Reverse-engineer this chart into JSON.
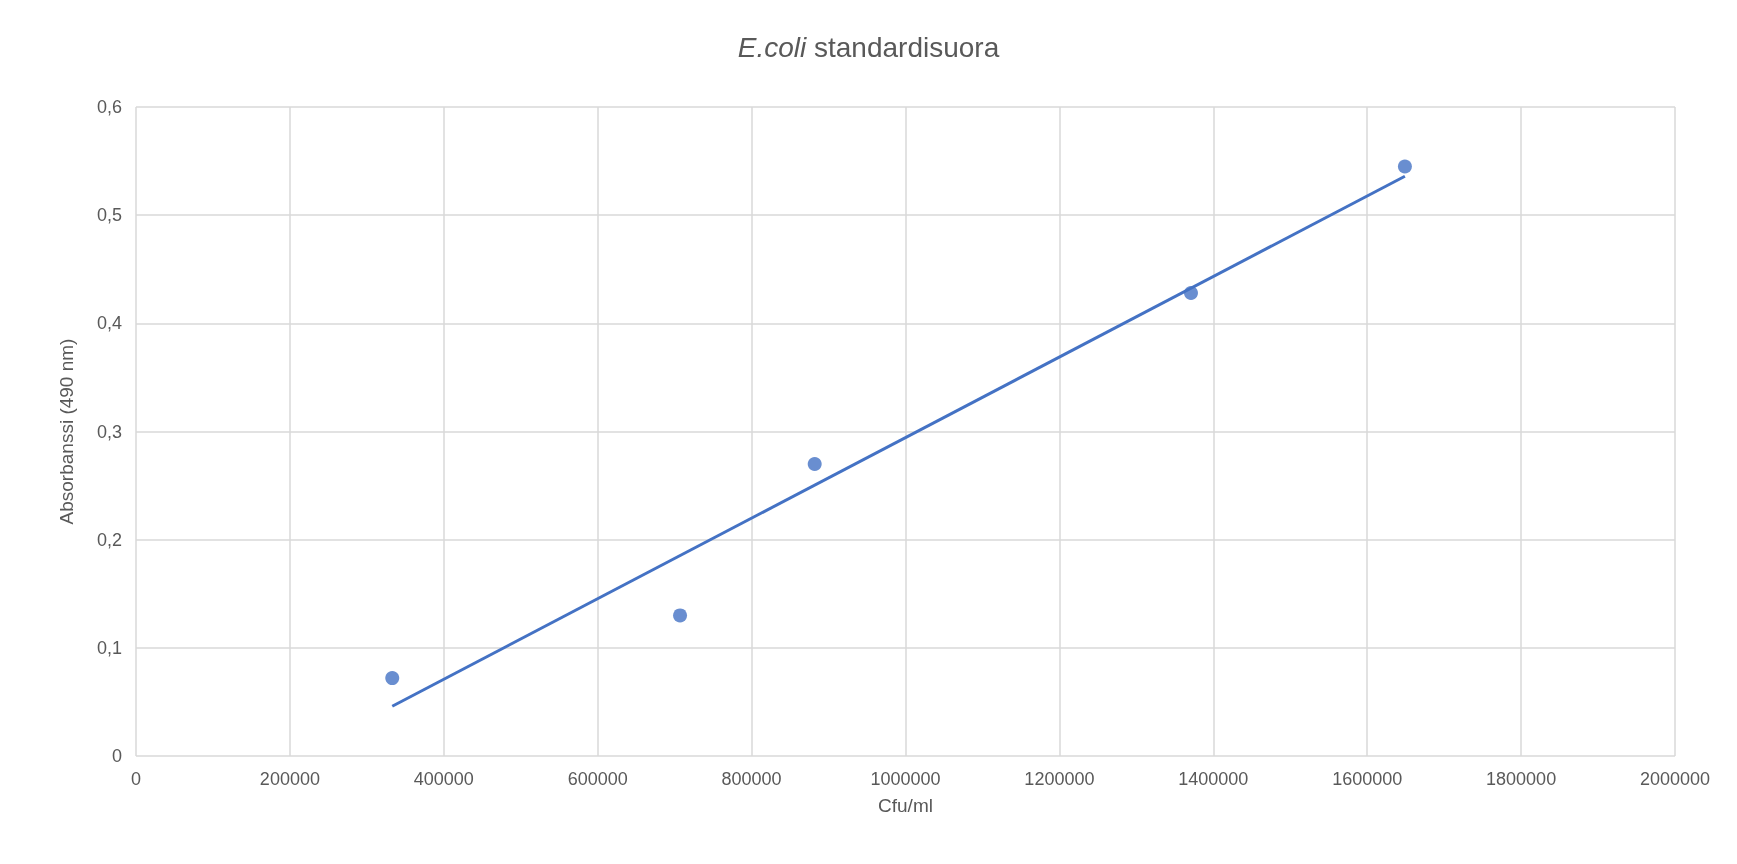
{
  "chart_data": {
    "type": "scatter",
    "title": "E.coli standardisuora",
    "xlabel": "Cfu/ml",
    "ylabel": "Absorbanssi (490 nm)",
    "series": [
      {
        "color": "#4472c4",
        "marker": "circle",
        "x": [
          333000,
          707000,
          882000,
          1371000,
          1649000
        ],
        "values": [
          0.072,
          0.13,
          0.27,
          0.428,
          0.545
        ]
      },
      {
        "type": "line",
        "color": "#4472c4",
        "line_style": "solid",
        "x": [
          333000,
          1649000
        ],
        "values": [
          0.046,
          0.536
        ]
      }
    ],
    "xlim": [
      0,
      2000000
    ],
    "xticks": [
      0,
      200000,
      400000,
      600000,
      800000,
      1000000,
      1200000,
      1400000,
      1600000,
      1800000,
      2000000
    ],
    "ylim": [
      0,
      0.6
    ],
    "yticks": [
      0,
      {
        "value": 0.1,
        "label": "0,1"
      },
      {
        "value": 0.2,
        "label": "0,2"
      },
      {
        "value": 0.3,
        "label": "0,3"
      },
      {
        "value": 0.4,
        "label": "0,4"
      },
      {
        "value": 0.5,
        "label": "0,5"
      },
      {
        "value": 0.6,
        "label": "0,6"
      }
    ],
    "grid": true
  }
}
